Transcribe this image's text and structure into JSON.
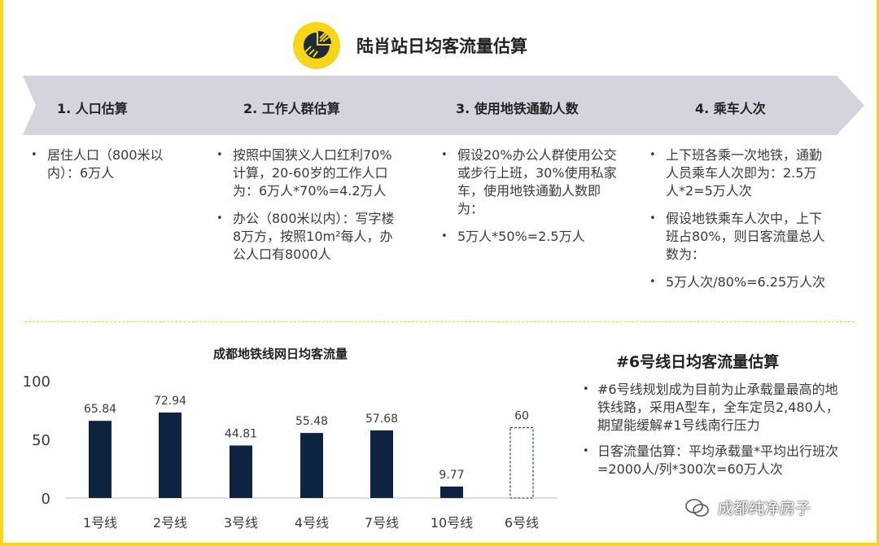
{
  "title": "陆肖站日均客流量估算",
  "steps": [
    {
      "label": "1. 人口估算"
    },
    {
      "label": "2. 工作人群估算"
    },
    {
      "label": "3. 使用地铁通勤人数"
    },
    {
      "label": "4. 乘车人次"
    }
  ],
  "columns": [
    {
      "bullets": [
        "居住人口（800米以内）：6万人"
      ]
    },
    {
      "bullets": [
        "按照中国狭义人口红利70%计算，20-60岁的工作人口为：6万人*70%=4.2万人",
        "办公（800米以内）：写字楼8万方，按照10m²每人，办公人口有8000人"
      ]
    },
    {
      "bullets": [
        "假设20%办公人群使用公交或步行上班，30%使用私家车，使用地铁通勤人数即为：",
        "5万人*50%=2.5万人"
      ]
    },
    {
      "bullets": [
        "上下班各乘一次地铁，通勤人员乘车人次即为：2.5万人*2=5万人次",
        "假设地铁乘车人次中，上下班占80%，则日客流量总人数为：",
        "5万人次/80%=6.25万人次"
      ]
    }
  ],
  "chart_data": {
    "type": "bar",
    "title": "成都地铁线网日均客流量",
    "categories": [
      "1号线",
      "2号线",
      "3号线",
      "4号线",
      "7号线",
      "10号线",
      "6号线"
    ],
    "values": [
      65.84,
      72.94,
      44.81,
      55.48,
      57.68,
      9.77,
      60
    ],
    "data_labels": [
      "65.84",
      "72.94",
      "44.81",
      "55.48",
      "57.68",
      "9.77",
      "60"
    ],
    "estimated": [
      false,
      false,
      false,
      false,
      false,
      false,
      true
    ],
    "ylim": [
      0,
      100
    ],
    "yticks": [
      "0",
      "50",
      "100"
    ],
    "bar_color": "#0d2340"
  },
  "right_panel": {
    "title": "#6号线日均客流量估算",
    "bullets": [
      "#6号线规划成为目前为止承载量最高的地铁线路，采用A型车，全车定员2,480人，期望能缓解#1号线南行压力",
      "日客流量估算：平均承载量*平均出行班次=2000人/列*300次=60万人次"
    ]
  },
  "watermark": "成都纯净房子",
  "colors": {
    "accent": "#f6d51a",
    "banner": "#d3d4dd",
    "bar": "#0d2340"
  }
}
